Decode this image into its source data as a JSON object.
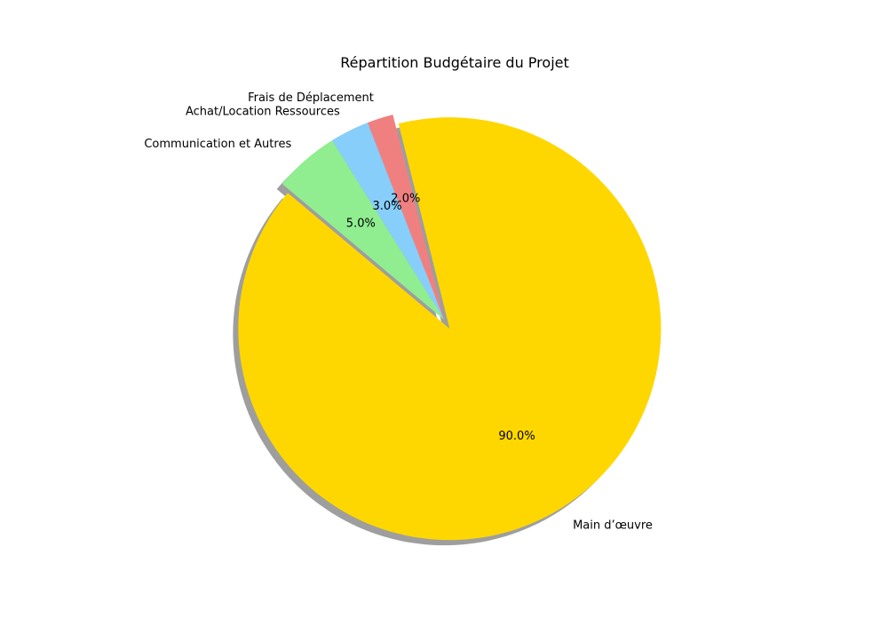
{
  "chart_data": {
    "type": "pie",
    "title": "Répartition Budgétaire du Projet",
    "slices": [
      {
        "label": "Main d’œuvre",
        "value": 90.0,
        "pct_label": "90.0%",
        "color": "#FFD700",
        "exploded": true
      },
      {
        "label": "Frais de Déplacement",
        "value": 2.0,
        "pct_label": "2.0%",
        "color": "#F08080",
        "exploded": false
      },
      {
        "label": "Achat/Location Ressources",
        "value": 3.0,
        "pct_label": "3.0%",
        "color": "#87CEFA",
        "exploded": false
      },
      {
        "label": "Communication et Autres",
        "value": 5.0,
        "pct_label": "5.0%",
        "color": "#90EE90",
        "exploded": false
      }
    ],
    "shadow": true,
    "start_angle": 140,
    "counterclockwise": true
  }
}
